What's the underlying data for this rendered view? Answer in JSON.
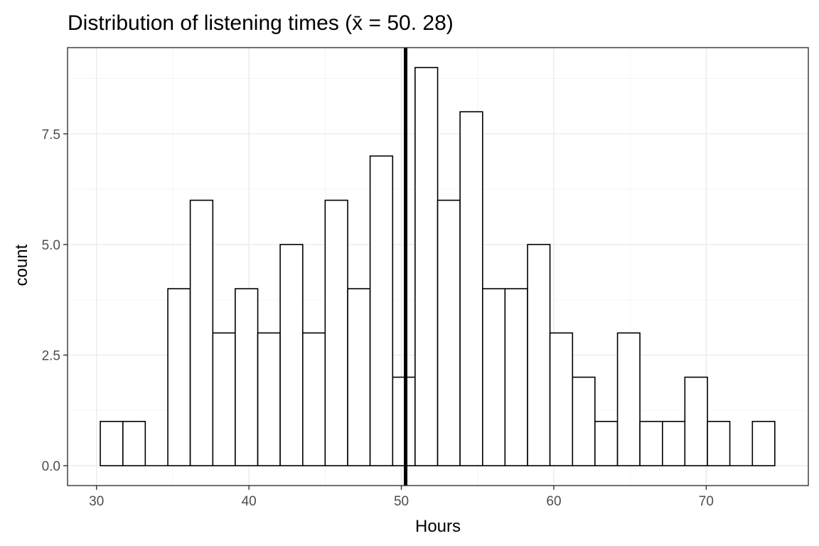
{
  "chart_data": {
    "type": "bar",
    "subtype": "histogram",
    "title": "Distribution of listening times (x̄ = 50. 28)",
    "xlabel": "Hours",
    "ylabel": "count",
    "bin_width": 1.475,
    "bins": [
      {
        "start": 30.25,
        "end": 31.73,
        "count": 1
      },
      {
        "start": 31.73,
        "end": 33.2,
        "count": 1
      },
      {
        "start": 33.2,
        "end": 34.68,
        "count": 0
      },
      {
        "start": 34.68,
        "end": 36.15,
        "count": 4
      },
      {
        "start": 36.15,
        "end": 37.63,
        "count": 6
      },
      {
        "start": 37.63,
        "end": 39.1,
        "count": 3
      },
      {
        "start": 39.1,
        "end": 40.58,
        "count": 4
      },
      {
        "start": 40.58,
        "end": 42.05,
        "count": 3
      },
      {
        "start": 42.05,
        "end": 43.53,
        "count": 5
      },
      {
        "start": 43.53,
        "end": 45.0,
        "count": 3
      },
      {
        "start": 45.0,
        "end": 46.48,
        "count": 6
      },
      {
        "start": 46.48,
        "end": 47.95,
        "count": 4
      },
      {
        "start": 47.95,
        "end": 49.43,
        "count": 7
      },
      {
        "start": 49.43,
        "end": 50.9,
        "count": 2
      },
      {
        "start": 50.9,
        "end": 52.38,
        "count": 9
      },
      {
        "start": 52.38,
        "end": 53.85,
        "count": 6
      },
      {
        "start": 53.85,
        "end": 55.33,
        "count": 8
      },
      {
        "start": 55.33,
        "end": 56.8,
        "count": 4
      },
      {
        "start": 56.8,
        "end": 58.28,
        "count": 4
      },
      {
        "start": 58.28,
        "end": 59.75,
        "count": 5
      },
      {
        "start": 59.75,
        "end": 61.23,
        "count": 3
      },
      {
        "start": 61.23,
        "end": 62.7,
        "count": 2
      },
      {
        "start": 62.7,
        "end": 64.18,
        "count": 1
      },
      {
        "start": 64.18,
        "end": 65.65,
        "count": 3
      },
      {
        "start": 65.65,
        "end": 67.13,
        "count": 1
      },
      {
        "start": 67.13,
        "end": 68.6,
        "count": 1
      },
      {
        "start": 68.6,
        "end": 70.08,
        "count": 2
      },
      {
        "start": 70.08,
        "end": 71.55,
        "count": 1
      },
      {
        "start": 71.55,
        "end": 73.03,
        "count": 0
      },
      {
        "start": 73.03,
        "end": 74.5,
        "count": 1
      }
    ],
    "mean_line": {
      "x": 50.28
    },
    "xlim": [
      28.1,
      76.7
    ],
    "ylim": [
      -0.45,
      9.45
    ],
    "x_ticks": [
      30,
      40,
      50,
      60,
      70
    ],
    "x_tick_labels": [
      "30",
      "40",
      "50",
      "60",
      "70"
    ],
    "y_ticks": [
      0,
      2.5,
      5,
      7.5
    ],
    "y_tick_labels": [
      "0.0",
      "2.5",
      "5.0",
      "7.5"
    ],
    "grid": true,
    "legend": "none",
    "colors": {
      "bar_fill": "#ffffff",
      "bar_outline": "#000000",
      "mean_line": "#000000",
      "grid": "#ebebeb",
      "panel_border": "#333333"
    }
  }
}
